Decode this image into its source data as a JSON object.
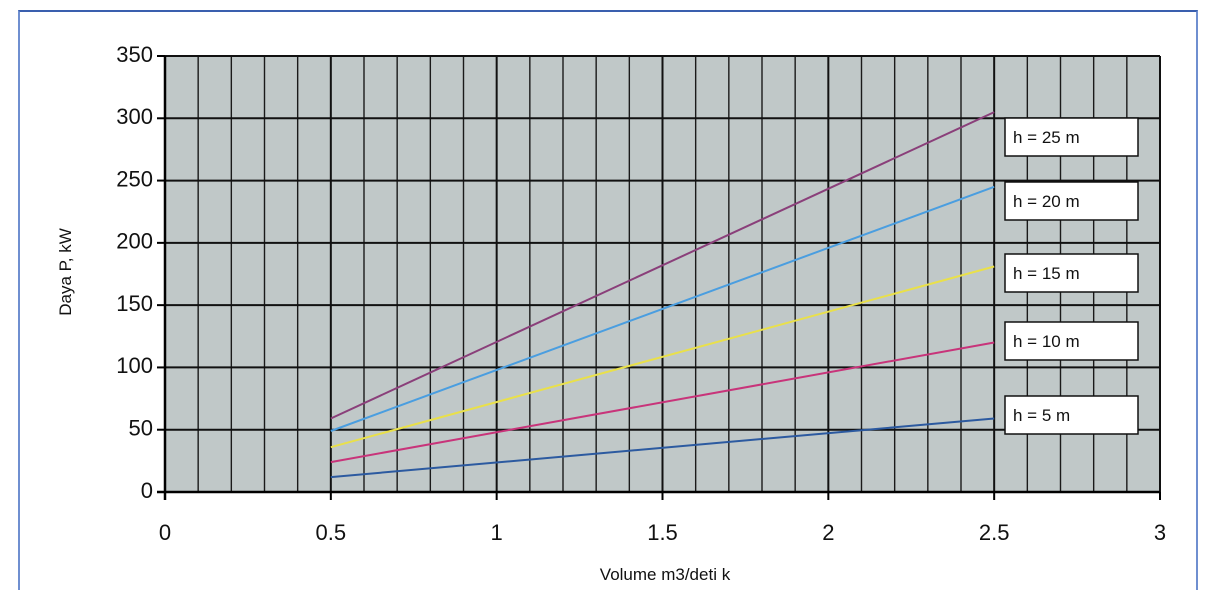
{
  "chart_data": {
    "type": "line",
    "title": "",
    "xlabel": "Volume m3/deti k",
    "ylabel": "Daya P, kW",
    "xlim": [
      0,
      3
    ],
    "ylim": [
      0,
      350
    ],
    "xticks": [
      "0",
      "0.5",
      "1",
      "1.5",
      "2",
      "2.5",
      "3"
    ],
    "yticks": [
      "0",
      "50",
      "100",
      "150",
      "200",
      "250",
      "300",
      "350"
    ],
    "grid": true,
    "legend": "right",
    "plot_background": "#c0c8c8",
    "series": [
      {
        "name": "h = 25 m",
        "color": "#8a3f7a",
        "x": [
          0.5,
          2.5
        ],
        "y": [
          59,
          305
        ]
      },
      {
        "name": "h = 20 m",
        "color": "#4a9ee0",
        "x": [
          0.5,
          2.5
        ],
        "y": [
          49,
          245
        ]
      },
      {
        "name": "h = 15 m",
        "color": "#e9e04a",
        "x": [
          0.5,
          2.5
        ],
        "y": [
          36,
          181
        ]
      },
      {
        "name": "h = 10 m",
        "color": "#c8347a",
        "x": [
          0.5,
          2.5
        ],
        "y": [
          24,
          120
        ]
      },
      {
        "name": "h = 5 m",
        "color": "#2c5aa0",
        "x": [
          0.5,
          2.5
        ],
        "y": [
          12,
          59
        ]
      }
    ]
  }
}
